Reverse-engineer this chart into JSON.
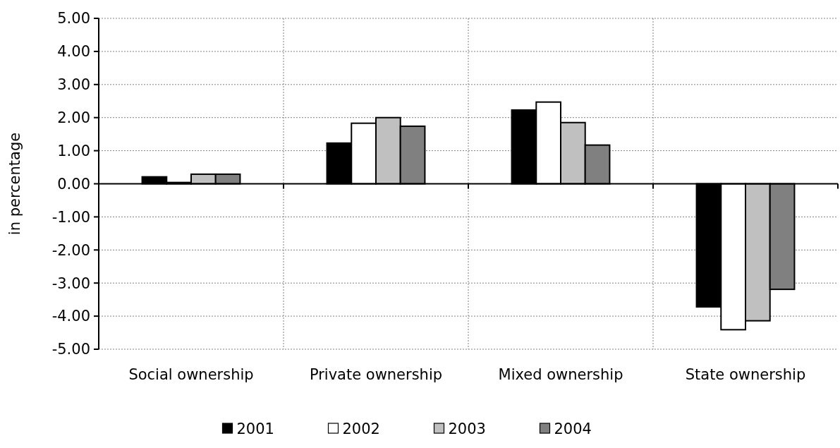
{
  "chart_data": {
    "type": "bar",
    "ylabel": "in percentage",
    "categories": [
      "Social ownership",
      "Private ownership",
      "Mixed ownership",
      "State ownership"
    ],
    "series": [
      {
        "name": "2001",
        "color": "#000000",
        "values": [
          0.21,
          1.23,
          2.23,
          -3.72
        ]
      },
      {
        "name": "2002",
        "color": "#ffffff",
        "values": [
          0.04,
          1.83,
          2.47,
          -4.41
        ]
      },
      {
        "name": "2003",
        "color": "#c0c0c0",
        "values": [
          0.29,
          2.0,
          1.85,
          -4.14
        ]
      },
      {
        "name": "2004",
        "color": "#808080",
        "values": [
          0.29,
          1.74,
          1.17,
          -3.19
        ]
      }
    ],
    "ylim": [
      -5,
      5
    ],
    "yticks": [
      {
        "value": -5,
        "label": "-5.00"
      },
      {
        "value": -4,
        "label": "-4.00"
      },
      {
        "value": -3,
        "label": "-3.00"
      },
      {
        "value": -2,
        "label": "-2.00"
      },
      {
        "value": -1,
        "label": "-1.00"
      },
      {
        "value": 0,
        "label": "0.00"
      },
      {
        "value": 1,
        "label": "1.00"
      },
      {
        "value": 2,
        "label": "2.00"
      },
      {
        "value": 3,
        "label": "3.00"
      },
      {
        "value": 4,
        "label": "4.00"
      },
      {
        "value": 5,
        "label": "5.00"
      }
    ],
    "grid": true,
    "legend": "bottom"
  }
}
